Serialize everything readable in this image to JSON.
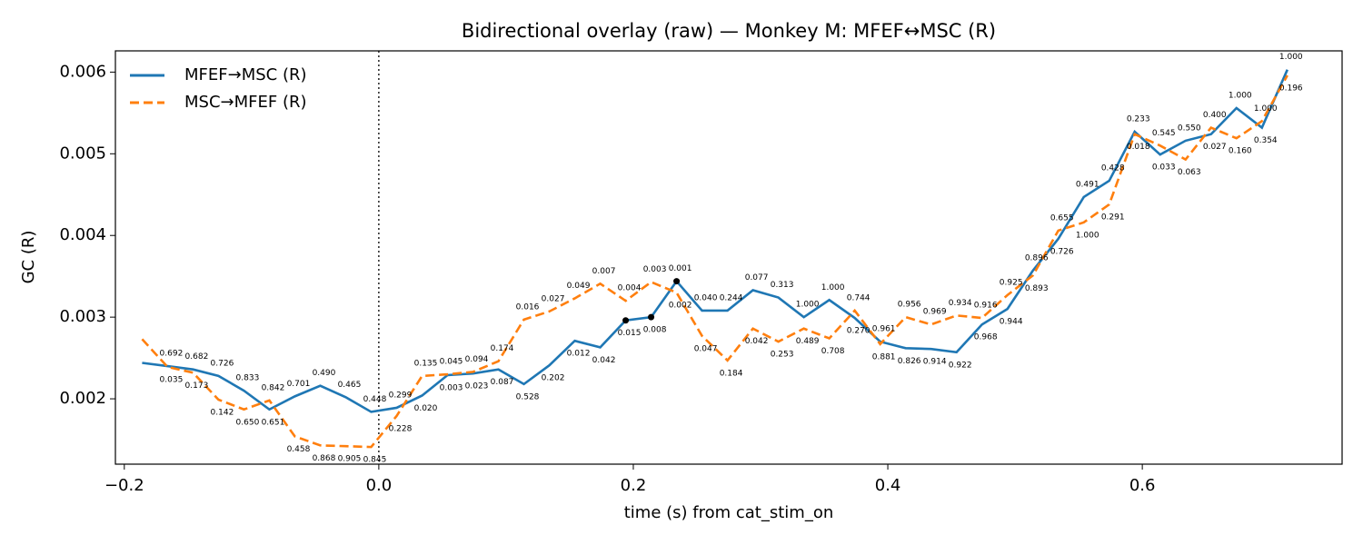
{
  "chart_data": {
    "type": "line",
    "title": "Bidirectional overlay (raw) — Monkey M: MFEF↔MSC (R)",
    "xlabel": "time (s) from cat_stim_on",
    "ylabel": "GC (R)",
    "x": [
      -0.186,
      -0.166,
      -0.146,
      -0.126,
      -0.106,
      -0.086,
      -0.066,
      -0.046,
      -0.026,
      -0.006,
      0.014,
      0.034,
      0.054,
      0.074,
      0.094,
      0.114,
      0.134,
      0.154,
      0.174,
      0.194,
      0.214,
      0.234,
      0.254,
      0.274,
      0.294,
      0.314,
      0.334,
      0.354,
      0.374,
      0.394,
      0.414,
      0.434,
      0.454,
      0.474,
      0.494,
      0.514,
      0.534,
      0.554,
      0.574,
      0.594,
      0.614,
      0.634,
      0.654,
      0.674,
      0.694,
      0.714
    ],
    "series": [
      {
        "name": "MFEF→MSC (R)",
        "color": "#1f77b4",
        "dash": "solid",
        "highlighted": [
          19,
          20,
          21
        ],
        "values": [
          0.00244,
          0.0024,
          0.00236,
          0.00228,
          0.0021,
          0.00187,
          0.00203,
          0.00216,
          0.00202,
          0.00184,
          0.00189,
          0.00204,
          0.00229,
          0.00231,
          0.00236,
          0.00218,
          0.00241,
          0.00271,
          0.00263,
          0.00296,
          0.003,
          0.00344,
          0.00308,
          0.00308,
          0.00333,
          0.00324,
          0.003,
          0.00321,
          0.00299,
          0.0027,
          0.00262,
          0.00261,
          0.00257,
          0.00291,
          0.0031,
          0.00357,
          0.00396,
          0.00447,
          0.00467,
          0.00527,
          0.00499,
          0.00516,
          0.00524,
          0.00556,
          0.00532,
          0.00603
        ]
      },
      {
        "name": "MSC→MFEF (R)",
        "color": "#ff7f0e",
        "dash": "dashed",
        "values": [
          0.00273,
          0.00239,
          0.00232,
          0.00199,
          0.00187,
          0.00198,
          0.00154,
          0.00143,
          0.00142,
          0.00141,
          0.00179,
          0.00228,
          0.0023,
          0.00233,
          0.00246,
          0.00297,
          0.00307,
          0.00323,
          0.00341,
          0.0032,
          0.00343,
          0.0033,
          0.00277,
          0.00247,
          0.00286,
          0.0027,
          0.00286,
          0.00274,
          0.00308,
          0.00267,
          0.003,
          0.00291,
          0.00302,
          0.00299,
          0.00327,
          0.00351,
          0.00406,
          0.00416,
          0.00438,
          0.00524,
          0.0051,
          0.00493,
          0.00532,
          0.00519,
          0.0054,
          0.00596
        ]
      }
    ],
    "p_labels_upper": [
      null,
      "0.692",
      "0.682",
      "0.726",
      "0.833",
      "0.842",
      "0.701",
      "0.490",
      "0.465",
      "0.448",
      "0.299",
      "0.135",
      "0.045",
      "0.094",
      "0.174",
      "0.016",
      "0.027",
      "0.049",
      "0.007",
      "0.004",
      "0.003",
      "0.001",
      "0.040",
      "0.244",
      "0.077",
      "0.313",
      "1.000",
      "1.000",
      "0.744",
      "0.961",
      "0.956",
      "0.969",
      "0.934",
      "0.916",
      "0.925",
      "0.896",
      "0.655",
      "0.491",
      "0.428",
      "0.233",
      "0.545",
      "0.550",
      "0.400",
      "1.000",
      "1.000",
      "1.000"
    ],
    "p_labels_lower": [
      null,
      "0.035",
      "0.173",
      "0.142",
      "0.650",
      "0.651",
      "0.458",
      "0.868",
      "0.905",
      "0.845",
      "0.228",
      "0.020",
      "0.003",
      "0.023",
      "0.087",
      "0.528",
      "0.202",
      "0.012",
      "0.042",
      "0.015",
      "0.008",
      "0.002",
      "0.047",
      "0.184",
      "0.042",
      "0.253",
      "0.489",
      "0.708",
      "0.270",
      "0.881",
      "0.826",
      "0.914",
      "0.922",
      "0.968",
      "0.944",
      "0.893",
      "0.726",
      "1.000",
      "0.291",
      "0.018",
      "0.033",
      "0.063",
      "0.027",
      "0.160",
      "0.354",
      "0.196"
    ],
    "vline": 0,
    "xlim": [
      -0.207,
      0.757
    ],
    "ylim": [
      0.0012,
      0.00626
    ],
    "xticks": [
      {
        "value": -0.2,
        "label": "−0.2"
      },
      {
        "value": 0,
        "label": "0.0"
      },
      0.2,
      0.4,
      0.6
    ],
    "yticks": [
      0.002,
      0.003,
      0.004,
      0.005,
      0.006
    ],
    "grid": false,
    "legend": "upper left"
  }
}
